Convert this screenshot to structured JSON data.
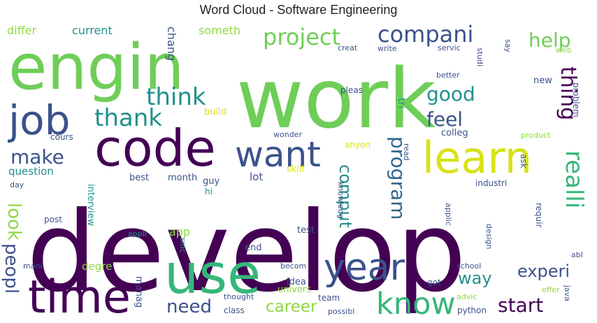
{
  "title": "Word Cloud - Software Engineering",
  "colors": {
    "dark_purple": "#440154",
    "indigo": "#3b528b",
    "blue": "#31688e",
    "teal": "#21918c",
    "green": "#35b779",
    "light_green": "#6ece58",
    "lime": "#90d743",
    "yellow": "#d8e219",
    "bright_yellow": "#fde725"
  },
  "words": [
    {
      "text": "develop",
      "color": "dark_purple"
    },
    {
      "text": "work",
      "color": "light_green"
    },
    {
      "text": "engin",
      "color": "light_green"
    },
    {
      "text": "code",
      "color": "dark_purple"
    },
    {
      "text": "job",
      "color": "indigo"
    },
    {
      "text": "use",
      "color": "green"
    },
    {
      "text": "time",
      "color": "dark_purple"
    },
    {
      "text": "year",
      "color": "indigo"
    },
    {
      "text": "want",
      "color": "indigo"
    },
    {
      "text": "learn",
      "color": "yellow"
    },
    {
      "text": "know",
      "color": "green"
    },
    {
      "text": "compani",
      "color": "indigo"
    },
    {
      "text": "project",
      "color": "light_green"
    },
    {
      "text": "help",
      "color": "light_green"
    },
    {
      "text": "think",
      "color": "teal"
    },
    {
      "text": "thank",
      "color": "teal"
    },
    {
      "text": "good",
      "color": "teal"
    },
    {
      "text": "feel",
      "color": "indigo"
    },
    {
      "text": "thing",
      "color": "dark_purple"
    },
    {
      "text": "make",
      "color": "indigo"
    },
    {
      "text": "realli",
      "color": "green"
    },
    {
      "text": "program",
      "color": "blue"
    },
    {
      "text": "comput",
      "color": "teal"
    },
    {
      "text": "look",
      "color": "lime"
    },
    {
      "text": "peopl",
      "color": "indigo"
    },
    {
      "text": "need",
      "color": "indigo"
    },
    {
      "text": "career",
      "color": "lime"
    },
    {
      "text": "start",
      "color": "dark_purple"
    },
    {
      "text": "experi",
      "color": "indigo"
    },
    {
      "text": "way",
      "color": "teal"
    },
    {
      "text": "differ",
      "color": "lime"
    },
    {
      "text": "current",
      "color": "teal"
    },
    {
      "text": "someth",
      "color": "lime"
    },
    {
      "text": "chang",
      "color": "indigo"
    },
    {
      "text": "question",
      "color": "teal"
    },
    {
      "text": "best",
      "color": "indigo"
    },
    {
      "text": "month",
      "color": "indigo"
    },
    {
      "text": "lot",
      "color": "indigo"
    },
    {
      "text": "guy",
      "color": "indigo"
    },
    {
      "text": "skill",
      "color": "yellow"
    },
    {
      "text": "anyon",
      "color": "yellow"
    },
    {
      "text": "tri",
      "color": "teal"
    },
    {
      "text": "colleg",
      "color": "indigo"
    },
    {
      "text": "build",
      "color": "yellow"
    },
    {
      "text": "wonder",
      "color": "indigo"
    },
    {
      "text": "cours",
      "color": "indigo"
    },
    {
      "text": "product",
      "color": "lime"
    },
    {
      "text": "problem",
      "color": "indigo"
    },
    {
      "text": "interview",
      "color": "teal"
    },
    {
      "text": "app",
      "color": "lime"
    },
    {
      "text": "post",
      "color": "indigo"
    },
    {
      "text": "appli",
      "color": "teal"
    },
    {
      "text": "degre",
      "color": "lime"
    },
    {
      "text": "manag",
      "color": "indigo"
    },
    {
      "text": "mani",
      "color": "indigo"
    },
    {
      "text": "sinc",
      "color": "teal"
    },
    {
      "text": "idea",
      "color": "indigo"
    },
    {
      "text": "end",
      "color": "indigo"
    },
    {
      "text": "test",
      "color": "indigo"
    },
    {
      "text": "team",
      "color": "indigo"
    },
    {
      "text": "class",
      "color": "indigo"
    },
    {
      "text": "thought",
      "color": "indigo"
    },
    {
      "text": "univers",
      "color": "lime"
    },
    {
      "text": "becom",
      "color": "indigo"
    },
    {
      "text": "got",
      "color": "indigo"
    },
    {
      "text": "advic",
      "color": "lime"
    },
    {
      "text": "python",
      "color": "indigo"
    },
    {
      "text": "school",
      "color": "indigo"
    },
    {
      "text": "java",
      "color": "indigo"
    },
    {
      "text": "offer",
      "color": "lime"
    },
    {
      "text": "abl",
      "color": "indigo"
    },
    {
      "text": "design",
      "color": "indigo"
    },
    {
      "text": "requir",
      "color": "indigo"
    },
    {
      "text": "applic",
      "color": "indigo"
    },
    {
      "text": "industri",
      "color": "indigo"
    },
    {
      "text": "ask",
      "color": "indigo"
    },
    {
      "text": "read",
      "color": "indigo"
    },
    {
      "text": "knowledg",
      "color": "indigo"
    },
    {
      "text": "hi",
      "color": "teal"
    },
    {
      "text": "day",
      "color": "indigo"
    },
    {
      "text": "new",
      "color": "indigo"
    },
    {
      "text": "better",
      "color": "indigo"
    },
    {
      "text": "studi",
      "color": "indigo"
    },
    {
      "text": "say",
      "color": "indigo"
    },
    {
      "text": "servic",
      "color": "indigo"
    },
    {
      "text": "write",
      "color": "indigo"
    },
    {
      "text": "creat",
      "color": "indigo"
    },
    {
      "text": "pleas",
      "color": "indigo"
    },
    {
      "text": "web",
      "color": "lime"
    },
    {
      "text": "possibl",
      "color": "indigo"
    }
  ]
}
